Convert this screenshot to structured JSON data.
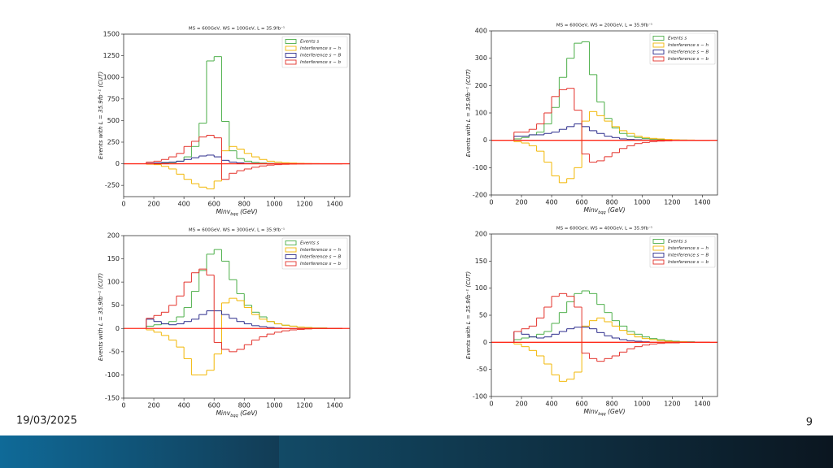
{
  "chart_data": [
    {
      "type": "histogram",
      "title": "MS = 600GeV, WS = 100GeV, L = 35.9fb⁻¹",
      "x_label": {
        "main": "Minv",
        "sub": "bqq",
        "unit": " (GeV)"
      },
      "y_label": "Events with L = 35.9fb⁻¹ (CUT)",
      "xlim": [
        0,
        1500
      ],
      "xticks": [
        0,
        200,
        400,
        600,
        800,
        1000,
        1200,
        1400
      ],
      "ylim": [
        -380,
        1500
      ],
      "yticks": [
        -250,
        0,
        250,
        500,
        750,
        1000,
        1250,
        1500
      ],
      "hline": 0,
      "hline_color": "#ff2a1a",
      "legend": "upper right",
      "bins": [
        150,
        200,
        250,
        300,
        350,
        400,
        450,
        500,
        550,
        600,
        650,
        700,
        750,
        800,
        850,
        900,
        950,
        1000,
        1050,
        1100,
        1150,
        1200,
        1250,
        1300,
        1350,
        1400,
        1450
      ],
      "series": [
        {
          "name": "Events s",
          "color": "#4daf4a",
          "values": [
            5,
            8,
            10,
            15,
            30,
            80,
            200,
            470,
            1190,
            1240,
            490,
            150,
            60,
            30,
            15,
            8,
            5,
            3,
            2,
            1,
            0,
            0,
            0,
            0,
            0,
            0
          ]
        },
        {
          "name": "Interference s − h",
          "color": "#f2b705",
          "values": [
            -5,
            -10,
            -30,
            -60,
            -120,
            -180,
            -230,
            -270,
            -290,
            -200,
            150,
            200,
            170,
            120,
            80,
            50,
            30,
            20,
            12,
            8,
            5,
            3,
            2,
            1,
            1,
            0
          ]
        },
        {
          "name": "Interference s − B",
          "color": "#2c2c8c",
          "values": [
            5,
            10,
            15,
            20,
            30,
            50,
            70,
            90,
            100,
            80,
            40,
            20,
            10,
            5,
            3,
            2,
            1,
            0,
            0,
            0,
            0,
            0,
            0,
            0,
            0,
            0
          ]
        },
        {
          "name": "Interference s − b",
          "color": "#e4322b",
          "values": [
            20,
            30,
            50,
            80,
            120,
            200,
            260,
            310,
            330,
            300,
            -180,
            -110,
            -80,
            -60,
            -40,
            -25,
            -15,
            -10,
            -6,
            -4,
            -2,
            -1,
            0,
            0,
            0,
            0
          ]
        }
      ]
    },
    {
      "type": "histogram",
      "title": "MS = 600GeV, WS = 200GeV, L = 35.9fb⁻¹",
      "x_label": {
        "main": "Minv",
        "sub": "bqq",
        "unit": " (GeV)"
      },
      "y_label": "Events with L = 35.9fb⁻¹ (CUT)",
      "xlim": [
        0,
        1500
      ],
      "xticks": [
        0,
        200,
        400,
        600,
        800,
        1000,
        1200,
        1400
      ],
      "ylim": [
        -200,
        400
      ],
      "yticks": [
        -200,
        -100,
        0,
        100,
        200,
        300,
        400
      ],
      "hline": 0,
      "hline_color": "#ff2a1a",
      "legend": "upper right",
      "bins": [
        150,
        200,
        250,
        300,
        350,
        400,
        450,
        500,
        550,
        600,
        650,
        700,
        750,
        800,
        850,
        900,
        950,
        1000,
        1050,
        1100,
        1150,
        1200,
        1250,
        1300,
        1350,
        1400,
        1450
      ],
      "series": [
        {
          "name": "Events s",
          "color": "#4daf4a",
          "values": [
            5,
            10,
            20,
            30,
            60,
            120,
            230,
            300,
            355,
            360,
            240,
            140,
            80,
            45,
            25,
            15,
            10,
            6,
            4,
            3,
            2,
            1,
            1,
            0,
            0,
            0
          ]
        },
        {
          "name": "Interference s − h",
          "color": "#f2b705",
          "values": [
            -5,
            -10,
            -20,
            -40,
            -80,
            -130,
            -155,
            -140,
            -100,
            70,
            105,
            90,
            70,
            50,
            35,
            25,
            15,
            10,
            7,
            5,
            3,
            2,
            1,
            1,
            0,
            0
          ]
        },
        {
          "name": "Interference s − B",
          "color": "#2c2c8c",
          "values": [
            15,
            15,
            20,
            20,
            25,
            30,
            40,
            50,
            60,
            50,
            35,
            25,
            15,
            10,
            5,
            3,
            2,
            1,
            0,
            0,
            0,
            0,
            0,
            0,
            0,
            0
          ]
        },
        {
          "name": "Interference s − b",
          "color": "#e4322b",
          "values": [
            30,
            30,
            40,
            60,
            100,
            160,
            185,
            190,
            110,
            -50,
            -80,
            -75,
            -60,
            -45,
            -30,
            -20,
            -12,
            -8,
            -5,
            -3,
            -2,
            -1,
            -1,
            0,
            0,
            0
          ]
        }
      ]
    },
    {
      "type": "histogram",
      "title": "MS = 600GeV, WS = 300GeV, L = 35.9fb⁻¹",
      "x_label": {
        "main": "Minv",
        "sub": "bqq",
        "unit": " (GeV)"
      },
      "y_label": "Events with L = 35.9fb⁻¹ (CUT)",
      "xlim": [
        0,
        1500
      ],
      "xticks": [
        0,
        200,
        400,
        600,
        800,
        1000,
        1200,
        1400
      ],
      "ylim": [
        -150,
        200
      ],
      "yticks": [
        -150,
        -100,
        -50,
        0,
        50,
        100,
        150,
        200
      ],
      "hline": 0,
      "hline_color": "#ff2a1a",
      "legend": "upper right",
      "bins": [
        150,
        200,
        250,
        300,
        350,
        400,
        450,
        500,
        550,
        600,
        650,
        700,
        750,
        800,
        850,
        900,
        950,
        1000,
        1050,
        1100,
        1150,
        1200,
        1250,
        1300,
        1350,
        1400,
        1450
      ],
      "series": [
        {
          "name": "Events s",
          "color": "#4daf4a",
          "values": [
            5,
            8,
            10,
            15,
            25,
            45,
            80,
            125,
            160,
            170,
            145,
            105,
            75,
            50,
            35,
            25,
            15,
            10,
            7,
            5,
            3,
            2,
            1,
            1,
            0,
            0
          ]
        },
        {
          "name": "Interference s − h",
          "color": "#f2b705",
          "values": [
            -3,
            -8,
            -15,
            -25,
            -40,
            -65,
            -100,
            -100,
            -90,
            -55,
            55,
            65,
            60,
            45,
            30,
            20,
            15,
            10,
            7,
            5,
            3,
            2,
            1,
            1,
            0,
            0
          ]
        },
        {
          "name": "Interference s − B",
          "color": "#2c2c8c",
          "values": [
            20,
            15,
            10,
            8,
            10,
            15,
            20,
            30,
            38,
            38,
            30,
            22,
            15,
            10,
            6,
            4,
            2,
            1,
            0,
            0,
            0,
            0,
            0,
            0,
            0,
            0
          ]
        },
        {
          "name": "Interference s − b",
          "color": "#e4322b",
          "values": [
            22,
            28,
            35,
            50,
            70,
            100,
            120,
            128,
            115,
            -30,
            -45,
            -50,
            -45,
            -35,
            -25,
            -18,
            -12,
            -8,
            -5,
            -3,
            -2,
            -1,
            0,
            0,
            0,
            0
          ]
        }
      ]
    },
    {
      "type": "histogram",
      "title": "MS = 600GeV, WS = 400GeV, L = 35.9fb⁻¹",
      "x_label": {
        "main": "Minv",
        "sub": "bqq",
        "unit": " (GeV)"
      },
      "y_label": "Events with L = 35.9fb⁻¹ (CUT)",
      "xlim": [
        0,
        1500
      ],
      "xticks": [
        0,
        200,
        400,
        600,
        800,
        1000,
        1200,
        1400
      ],
      "ylim": [
        -100,
        200
      ],
      "yticks": [
        -100,
        -50,
        0,
        50,
        100,
        150,
        200
      ],
      "hline": 0,
      "hline_color": "#ff2a1a",
      "legend": "upper right",
      "bins": [
        150,
        200,
        250,
        300,
        350,
        400,
        450,
        500,
        550,
        600,
        650,
        700,
        750,
        800,
        850,
        900,
        950,
        1000,
        1050,
        1100,
        1150,
        1200,
        1250,
        1300,
        1350,
        1400,
        1450
      ],
      "series": [
        {
          "name": "Events s",
          "color": "#4daf4a",
          "values": [
            5,
            8,
            10,
            15,
            20,
            35,
            55,
            75,
            90,
            95,
            90,
            70,
            55,
            40,
            30,
            20,
            15,
            10,
            7,
            5,
            3,
            2,
            1,
            1,
            0,
            0
          ]
        },
        {
          "name": "Interference s − h",
          "color": "#f2b705",
          "values": [
            -3,
            -8,
            -15,
            -25,
            -40,
            -60,
            -72,
            -68,
            -55,
            30,
            40,
            45,
            38,
            30,
            22,
            15,
            10,
            7,
            5,
            3,
            2,
            1,
            1,
            0,
            0,
            0
          ]
        },
        {
          "name": "Interference s − B",
          "color": "#2c2c8c",
          "values": [
            20,
            15,
            10,
            8,
            10,
            15,
            20,
            25,
            28,
            28,
            25,
            18,
            12,
            8,
            5,
            3,
            2,
            1,
            0,
            0,
            0,
            0,
            0,
            0,
            0,
            0
          ]
        },
        {
          "name": "Interference s − b",
          "color": "#e4322b",
          "values": [
            20,
            25,
            30,
            45,
            65,
            85,
            90,
            85,
            65,
            -20,
            -30,
            -35,
            -30,
            -25,
            -18,
            -12,
            -8,
            -5,
            -3,
            -2,
            -1,
            -1,
            0,
            0,
            0,
            0
          ]
        }
      ]
    }
  ],
  "footer": {
    "date": "19/03/2025",
    "page": "9"
  }
}
